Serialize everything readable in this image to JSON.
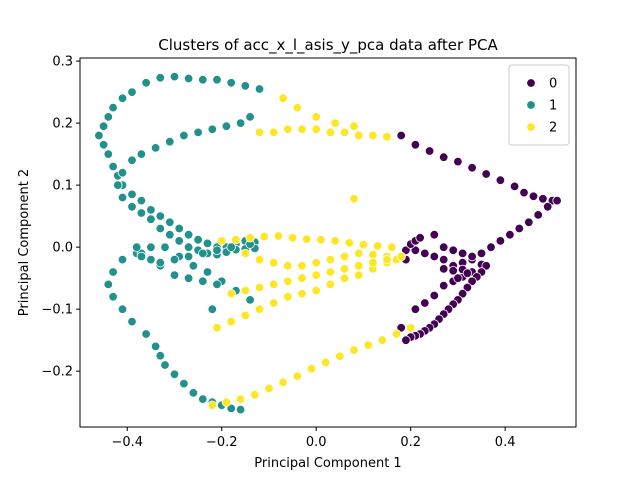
{
  "chart_data": {
    "type": "scatter",
    "title": "Clusters of acc_x_l_asis_y_pca data after PCA",
    "xlabel": "Principal Component 1",
    "ylabel": "Principal Component 2",
    "xlim": [
      -0.5,
      0.55
    ],
    "ylim": [
      -0.29,
      0.305
    ],
    "xticks": [
      -0.4,
      -0.2,
      0.0,
      0.2,
      0.4
    ],
    "xtick_labels": [
      "−0.4",
      "−0.2",
      "0.0",
      "0.2",
      "0.4"
    ],
    "yticks": [
      -0.2,
      -0.1,
      0.0,
      0.1,
      0.2,
      0.3
    ],
    "ytick_labels": [
      "−0.2",
      "−0.1",
      "0.0",
      "0.1",
      "0.2",
      "0.3"
    ],
    "grid": false,
    "legend_position": "top-right",
    "series": [
      {
        "name": "0",
        "color": "#440154",
        "x": [
          0.18,
          0.21,
          0.24,
          0.27,
          0.3,
          0.33,
          0.36,
          0.39,
          0.42,
          0.44,
          0.46,
          0.48,
          0.5,
          0.51,
          0.49,
          0.47,
          0.45,
          0.43,
          0.41,
          0.39,
          0.37,
          0.35,
          0.33,
          0.31,
          0.29,
          0.27,
          0.25,
          0.23,
          0.21,
          0.19,
          0.19,
          0.2,
          0.21,
          0.22,
          0.25,
          0.27,
          0.29,
          0.31,
          0.33,
          0.35,
          0.33,
          0.31,
          0.29,
          0.27,
          0.25,
          0.23,
          0.21,
          0.18,
          0.36,
          0.35,
          0.34,
          0.33,
          0.32,
          0.31,
          0.3,
          0.29,
          0.28,
          0.27,
          0.26,
          0.25,
          0.24,
          0.23,
          0.22,
          0.21,
          0.2,
          0.19,
          0.27,
          0.29,
          0.31,
          0.32,
          0.3
        ],
        "y": [
          0.18,
          0.165,
          0.155,
          0.145,
          0.138,
          0.128,
          0.118,
          0.108,
          0.098,
          0.088,
          0.082,
          0.078,
          0.075,
          0.075,
          0.065,
          0.052,
          0.04,
          0.03,
          0.02,
          0.01,
          0.0,
          -0.01,
          -0.02,
          -0.025,
          -0.03,
          -0.02,
          -0.015,
          -0.01,
          -0.005,
          -0.02,
          -0.005,
          0.005,
          0.01,
          0.015,
          0.02,
          0.0,
          -0.005,
          -0.01,
          -0.015,
          -0.028,
          -0.04,
          -0.048,
          -0.055,
          -0.062,
          -0.078,
          -0.09,
          -0.1,
          -0.13,
          -0.03,
          -0.04,
          -0.048,
          -0.055,
          -0.065,
          -0.075,
          -0.085,
          -0.092,
          -0.1,
          -0.108,
          -0.116,
          -0.124,
          -0.13,
          -0.135,
          -0.14,
          -0.143,
          -0.145,
          -0.15,
          -0.035,
          -0.038,
          -0.036,
          -0.042,
          -0.05
        ]
      },
      {
        "name": "1",
        "color": "#21918c",
        "x": [
          -0.12,
          -0.15,
          -0.18,
          -0.21,
          -0.24,
          -0.27,
          -0.3,
          -0.33,
          -0.36,
          -0.39,
          -0.41,
          -0.43,
          -0.44,
          -0.45,
          -0.46,
          -0.45,
          -0.44,
          -0.43,
          -0.42,
          -0.41,
          -0.39,
          -0.37,
          -0.35,
          -0.33,
          -0.31,
          -0.29,
          -0.27,
          -0.25,
          -0.23,
          -0.21,
          -0.19,
          -0.17,
          -0.15,
          -0.13,
          -0.14,
          -0.16,
          -0.19,
          -0.22,
          -0.25,
          -0.28,
          -0.31,
          -0.34,
          -0.37,
          -0.39,
          -0.41,
          -0.42,
          -0.41,
          -0.39,
          -0.37,
          -0.35,
          -0.33,
          -0.31,
          -0.29,
          -0.27,
          -0.25,
          -0.23,
          -0.21,
          -0.19,
          -0.17,
          -0.15,
          -0.13,
          -0.14,
          -0.17,
          -0.2,
          -0.23,
          -0.26,
          -0.29,
          -0.32,
          -0.35,
          -0.38,
          -0.41,
          -0.43,
          -0.44,
          -0.43,
          -0.41,
          -0.39,
          -0.36,
          -0.34,
          -0.33,
          -0.32,
          -0.3,
          -0.28,
          -0.26,
          -0.24,
          -0.22,
          -0.2,
          -0.18,
          -0.16,
          -0.21,
          -0.24,
          -0.27,
          -0.3,
          -0.33,
          -0.35,
          -0.37,
          -0.38,
          -0.37,
          -0.35,
          -0.33,
          -0.3,
          -0.27,
          -0.24,
          -0.21,
          -0.18,
          -0.14,
          -0.22
        ],
        "y": [
          0.255,
          0.26,
          0.265,
          0.27,
          0.27,
          0.272,
          0.275,
          0.273,
          0.265,
          0.25,
          0.24,
          0.225,
          0.21,
          0.195,
          0.18,
          0.165,
          0.15,
          0.13,
          0.115,
          0.1,
          0.085,
          0.075,
          0.06,
          0.05,
          0.04,
          0.03,
          0.02,
          0.012,
          0.006,
          0.0,
          0.0,
          0.005,
          0.01,
          0.008,
          0.21,
          0.2,
          0.195,
          0.19,
          0.185,
          0.18,
          0.17,
          0.16,
          0.15,
          0.14,
          0.12,
          0.1,
          0.08,
          0.065,
          0.055,
          0.045,
          0.03,
          0.02,
          0.01,
          0.0,
          -0.005,
          -0.01,
          -0.012,
          -0.008,
          -0.004,
          -0.003,
          -0.002,
          -0.085,
          -0.07,
          -0.055,
          -0.04,
          -0.03,
          -0.015,
          0.0,
          0.0,
          -0.01,
          -0.02,
          -0.04,
          -0.06,
          -0.08,
          -0.1,
          -0.12,
          -0.14,
          -0.16,
          -0.175,
          -0.19,
          -0.205,
          -0.22,
          -0.235,
          -0.245,
          -0.25,
          -0.255,
          -0.26,
          -0.262,
          -0.06,
          -0.055,
          -0.05,
          -0.045,
          -0.03,
          -0.02,
          -0.01,
          0.0,
          -0.015,
          -0.02,
          -0.025,
          -0.02,
          -0.015,
          -0.01,
          -0.005,
          0.0,
          0.005,
          -0.1
        ]
      },
      {
        "name": "2",
        "color": "#fde725",
        "x": [
          -0.12,
          -0.09,
          -0.06,
          -0.03,
          0.0,
          0.03,
          0.06,
          0.09,
          0.12,
          0.15,
          -0.07,
          -0.04,
          0.0,
          0.04,
          0.08,
          -0.2,
          -0.17,
          -0.14,
          -0.11,
          -0.08,
          -0.05,
          -0.02,
          0.01,
          0.04,
          0.07,
          0.1,
          0.13,
          0.16,
          -0.15,
          -0.12,
          -0.09,
          -0.06,
          -0.03,
          0.0,
          0.03,
          0.06,
          0.09,
          0.12,
          0.15,
          0.17,
          -0.21,
          -0.18,
          -0.15,
          -0.12,
          -0.09,
          -0.06,
          -0.03,
          0.0,
          0.03,
          0.06,
          0.09,
          0.12,
          0.15,
          -0.18,
          -0.15,
          -0.12,
          -0.09,
          -0.06,
          -0.03,
          0.0,
          0.03,
          0.06,
          0.09,
          0.12,
          0.15,
          0.18,
          -0.22,
          -0.19,
          -0.16,
          -0.13,
          -0.1,
          -0.07,
          -0.04,
          -0.01,
          0.02,
          0.05,
          0.08,
          0.11,
          0.14,
          0.17,
          0.2,
          0.08
        ],
        "y": [
          0.185,
          0.185,
          0.19,
          0.19,
          0.19,
          0.185,
          0.185,
          0.18,
          0.18,
          0.178,
          0.24,
          0.225,
          0.21,
          0.2,
          0.195,
          0.01,
          0.012,
          0.015,
          0.017,
          0.018,
          0.015,
          0.013,
          0.012,
          0.01,
          0.007,
          0.004,
          0.002,
          0.0,
          -0.01,
          -0.02,
          -0.025,
          -0.03,
          -0.03,
          -0.025,
          -0.02,
          -0.015,
          -0.01,
          -0.012,
          -0.015,
          -0.02,
          -0.13,
          -0.12,
          -0.11,
          -0.1,
          -0.09,
          -0.08,
          -0.075,
          -0.07,
          -0.06,
          -0.05,
          -0.045,
          -0.035,
          -0.025,
          -0.075,
          -0.07,
          -0.065,
          -0.06,
          -0.055,
          -0.05,
          -0.045,
          -0.04,
          -0.035,
          -0.03,
          -0.025,
          -0.02,
          -0.015,
          -0.255,
          -0.25,
          -0.245,
          -0.238,
          -0.228,
          -0.218,
          -0.208,
          -0.196,
          -0.186,
          -0.176,
          -0.166,
          -0.158,
          -0.15,
          -0.14,
          -0.13,
          0.078
        ]
      }
    ]
  }
}
